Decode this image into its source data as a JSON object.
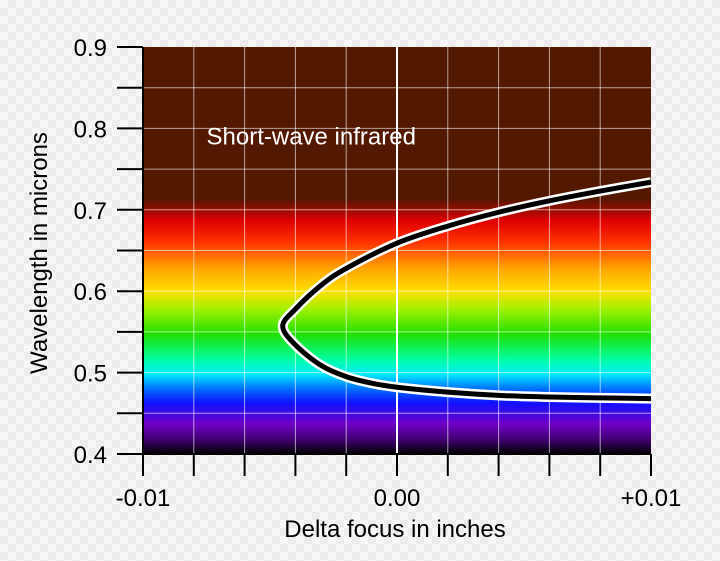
{
  "chart_data": {
    "type": "line",
    "title": "",
    "xlabel": "Delta focus in inches",
    "ylabel": "Wavelength in microns",
    "xlim": [
      -0.01,
      0.01
    ],
    "ylim": [
      0.4,
      0.9
    ],
    "x_ticks": [
      {
        "value": -0.01,
        "label": "-0.01"
      },
      {
        "value": 0.0,
        "label": "0.00"
      },
      {
        "value": 0.01,
        "label": "+0.01"
      }
    ],
    "y_ticks": [
      {
        "value": 0.4,
        "label": "0.4"
      },
      {
        "value": 0.5,
        "label": "0.5"
      },
      {
        "value": 0.6,
        "label": "0.6"
      },
      {
        "value": 0.7,
        "label": "0.7"
      },
      {
        "value": 0.8,
        "label": "0.8"
      },
      {
        "value": 0.9,
        "label": "0.9"
      }
    ],
    "grid": true,
    "annotation": {
      "text": "Short-wave infrared",
      "x": -0.0075,
      "y": 0.78
    },
    "series": [
      {
        "points": [
          [
            0.01,
            0.734
          ],
          [
            0.008,
            0.723
          ],
          [
            0.006,
            0.711
          ],
          [
            0.004,
            0.697
          ],
          [
            0.002,
            0.68
          ],
          [
            0.0,
            0.659
          ],
          [
            -0.002,
            0.628
          ],
          [
            -0.003,
            0.607
          ],
          [
            -0.004,
            0.578
          ],
          [
            -0.0045,
            0.557
          ],
          [
            -0.004,
            0.534
          ],
          [
            -0.003,
            0.509
          ],
          [
            -0.002,
            0.495
          ],
          [
            -0.001,
            0.487
          ],
          [
            0.0,
            0.482
          ],
          [
            0.002,
            0.476
          ],
          [
            0.004,
            0.472
          ],
          [
            0.006,
            0.47
          ],
          [
            0.008,
            0.469
          ],
          [
            0.01,
            0.468
          ]
        ]
      }
    ],
    "colors": {
      "infrared_band": "#521800",
      "curve": "#000000",
      "curve_outline": "#ffffff",
      "grid": "#ffffff"
    }
  }
}
